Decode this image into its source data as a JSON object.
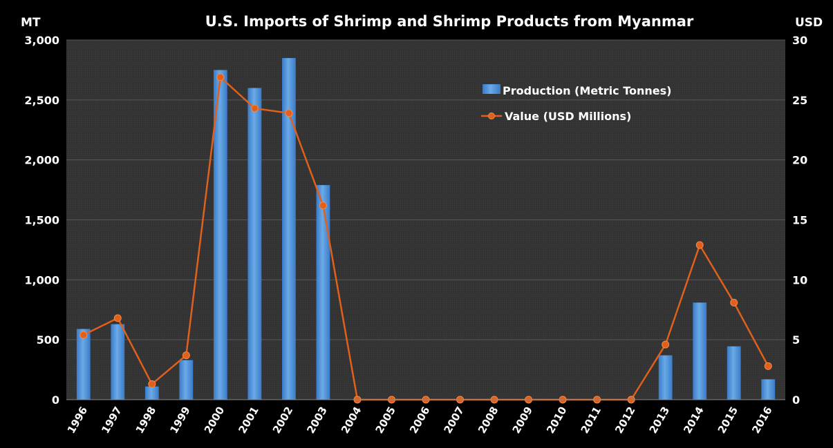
{
  "chart_data": {
    "type": "bar",
    "title": "U.S. Imports of Shrimp and Shrimp Products from Myanmar",
    "ylabel_left": "MT",
    "ylabel_right": "USD",
    "categories": [
      "1996",
      "1997",
      "1998",
      "1999",
      "2000",
      "2001",
      "2002",
      "2003",
      "2004",
      "2005",
      "2006",
      "2007",
      "2008",
      "2009",
      "2010",
      "2011",
      "2012",
      "2013",
      "2014",
      "2015",
      "2016"
    ],
    "ylim_left": [
      0,
      3000
    ],
    "yticks_left": [
      "0",
      "500",
      "1,000",
      "1,500",
      "2,000",
      "2,500",
      "3,000"
    ],
    "ylim_right": [
      0,
      30
    ],
    "yticks_right": [
      "0",
      "5",
      "10",
      "15",
      "20",
      "25",
      "30"
    ],
    "grid": true,
    "legend_position": "top-right",
    "series": [
      {
        "name": "Production (Metric Tonnes)",
        "type": "bar",
        "axis": "left",
        "color": "#4a8fd8",
        "values": [
          590,
          630,
          110,
          330,
          2750,
          2600,
          2850,
          1790,
          0,
          0,
          0,
          0,
          0,
          0,
          0,
          0,
          0,
          370,
          810,
          445,
          170
        ]
      },
      {
        "name": "Value (USD Millions)",
        "type": "line",
        "axis": "right",
        "color": "#e0601c",
        "values": [
          5.4,
          6.8,
          1.3,
          3.7,
          26.9,
          24.3,
          23.9,
          16.2,
          0,
          0,
          0,
          0,
          0,
          0,
          0,
          0,
          0,
          4.6,
          12.9,
          8.1,
          2.8
        ]
      }
    ]
  }
}
